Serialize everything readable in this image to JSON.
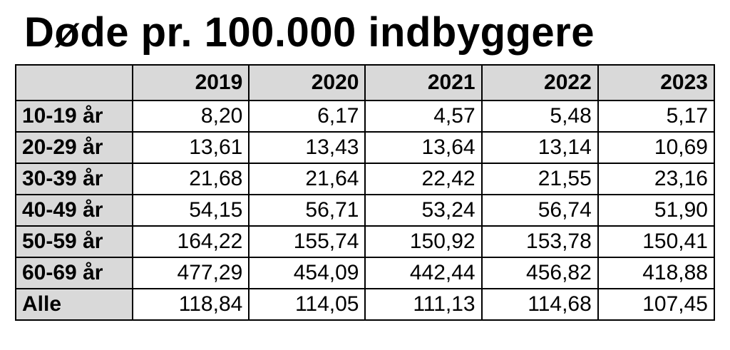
{
  "chart_data": {
    "type": "table",
    "title": "Døde pr. 100.000 indbyggere",
    "columns": [
      "2019",
      "2020",
      "2021",
      "2022",
      "2023"
    ],
    "rows": [
      {
        "label": "10-19 år",
        "values": [
          "8,20",
          "6,17",
          "4,57",
          "5,48",
          "5,17"
        ]
      },
      {
        "label": "20-29 år",
        "values": [
          "13,61",
          "13,43",
          "13,64",
          "13,14",
          "10,69"
        ]
      },
      {
        "label": "30-39 år",
        "values": [
          "21,68",
          "21,64",
          "22,42",
          "21,55",
          "23,16"
        ]
      },
      {
        "label": "40-49 år",
        "values": [
          "54,15",
          "56,71",
          "53,24",
          "56,74",
          "51,90"
        ]
      },
      {
        "label": "50-59 år",
        "values": [
          "164,22",
          "155,74",
          "150,92",
          "153,78",
          "150,41"
        ]
      },
      {
        "label": "60-69 år",
        "values": [
          "477,29",
          "454,09",
          "442,44",
          "456,82",
          "418,88"
        ]
      },
      {
        "label": "Alle",
        "values": [
          "118,84",
          "114,05",
          "111,13",
          "114,68",
          "107,45"
        ]
      }
    ]
  },
  "colors": {
    "header_fill": "#d9d9d9",
    "border": "#000000",
    "background": "#ffffff"
  }
}
